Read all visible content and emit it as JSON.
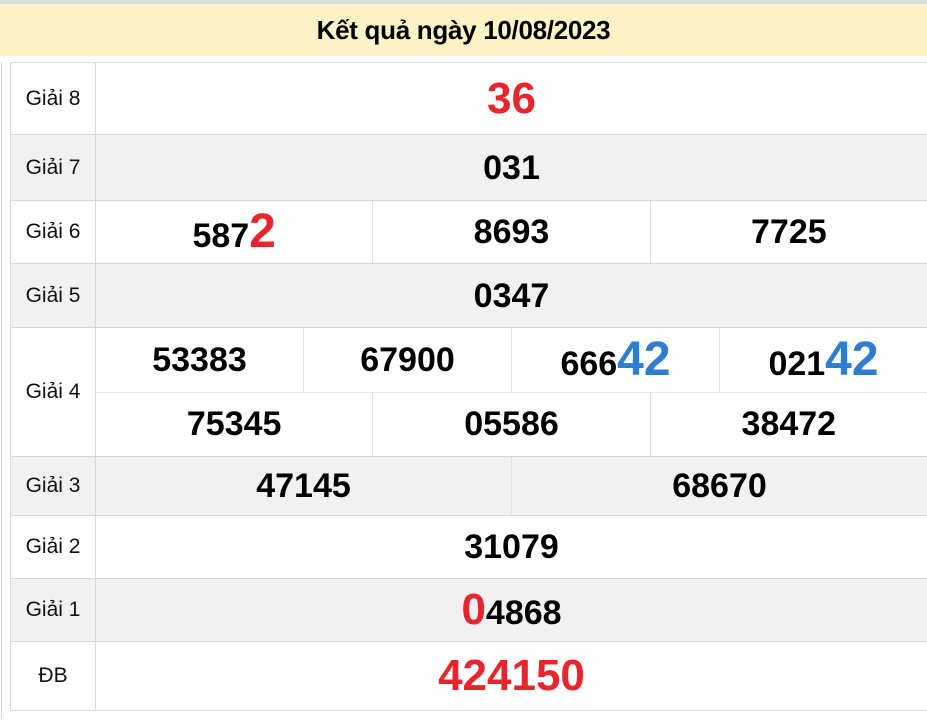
{
  "header": {
    "title": "Kết quả ngày 10/08/2023"
  },
  "colors": {
    "header_bg": "#fdf1c6",
    "accent_red": "#e8252c",
    "accent_blue": "#2d7dd2",
    "row_alt_bg": "#f1f1f1",
    "top_strip": "#dadada"
  },
  "table": {
    "rows": [
      {
        "label": "Giải 8",
        "lines": [
          [
            [
              {
                "t": "36",
                "c": "r",
                "s": "m"
              }
            ]
          ]
        ]
      },
      {
        "label": "Giải 7",
        "lines": [
          [
            [
              {
                "t": "031",
                "c": "k",
                "s": "n"
              }
            ]
          ]
        ]
      },
      {
        "label": "Giải 6",
        "lines": [
          [
            [
              {
                "t": "587",
                "c": "k",
                "s": "n"
              },
              {
                "t": "2",
                "c": "r",
                "s": "b"
              }
            ],
            [
              {
                "t": "8693",
                "c": "k",
                "s": "n"
              }
            ],
            [
              {
                "t": "7725",
                "c": "k",
                "s": "n"
              }
            ]
          ]
        ]
      },
      {
        "label": "Giải 5",
        "lines": [
          [
            [
              {
                "t": "0347",
                "c": "k",
                "s": "n"
              }
            ]
          ]
        ]
      },
      {
        "label": "Giải 4",
        "lines": [
          [
            [
              {
                "t": "53383",
                "c": "k",
                "s": "n"
              }
            ],
            [
              {
                "t": "67900",
                "c": "k",
                "s": "n"
              }
            ],
            [
              {
                "t": "666",
                "c": "k",
                "s": "n"
              },
              {
                "t": "42",
                "c": "b",
                "s": "b"
              }
            ],
            [
              {
                "t": "021",
                "c": "k",
                "s": "n"
              },
              {
                "t": "42",
                "c": "b",
                "s": "b"
              }
            ]
          ],
          [
            [
              {
                "t": "75345",
                "c": "k",
                "s": "n"
              }
            ],
            [
              {
                "t": "05586",
                "c": "k",
                "s": "n"
              }
            ],
            [
              {
                "t": "38472",
                "c": "k",
                "s": "n"
              }
            ]
          ]
        ]
      },
      {
        "label": "Giải 3",
        "lines": [
          [
            [
              {
                "t": "47145",
                "c": "k",
                "s": "n"
              }
            ],
            [
              {
                "t": "68670",
                "c": "k",
                "s": "n"
              }
            ]
          ]
        ]
      },
      {
        "label": "Giải 2",
        "lines": [
          [
            [
              {
                "t": "31079",
                "c": "k",
                "s": "n"
              }
            ]
          ]
        ]
      },
      {
        "label": "Giải 1",
        "lines": [
          [
            [
              {
                "t": "0",
                "c": "r",
                "s": "m"
              },
              {
                "t": "4868",
                "c": "k",
                "s": "n"
              }
            ]
          ]
        ]
      },
      {
        "label": "ĐB",
        "lines": [
          [
            [
              {
                "t": "424150",
                "c": "r",
                "s": "m"
              }
            ]
          ]
        ]
      }
    ]
  }
}
